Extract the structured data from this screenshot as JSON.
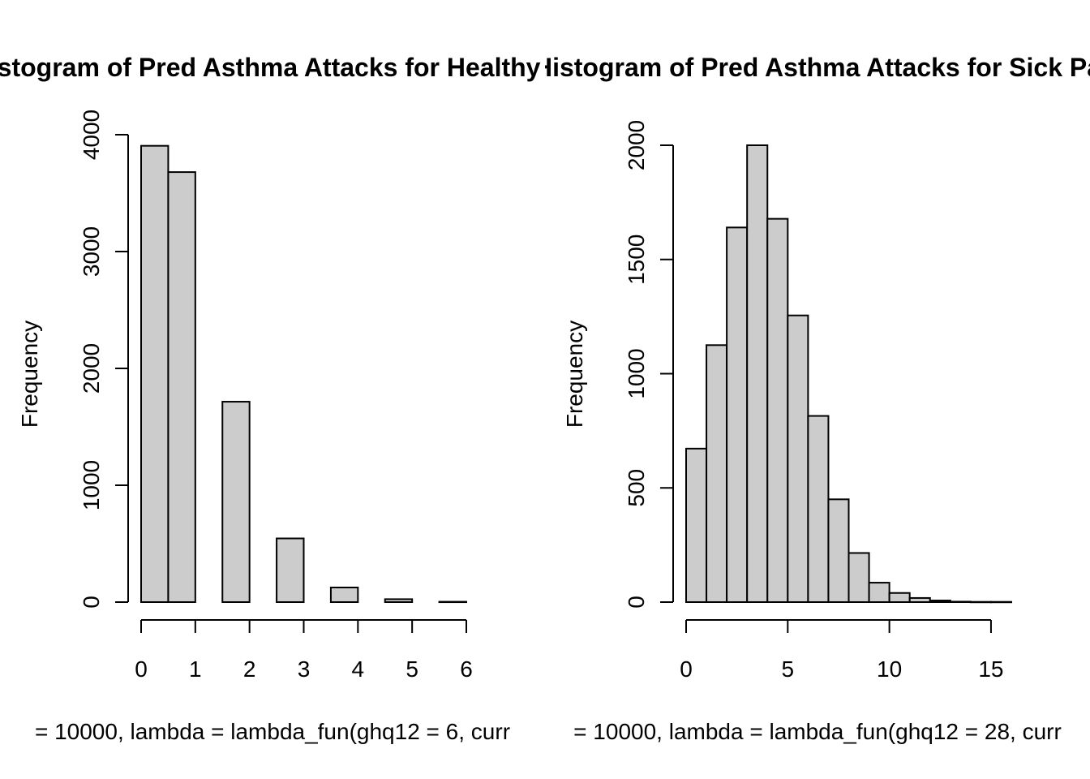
{
  "chart_data": [
    {
      "type": "bar",
      "title": "Histogram of Pred Asthma Attacks for Healthy Pt",
      "xlabel": "= 10000, lambda = lambda_fun(ghq12 = 6, curr",
      "ylabel": "Frequency",
      "xlim": [
        0,
        6
      ],
      "ylim": [
        0,
        4000
      ],
      "xticks": [
        0,
        1,
        2,
        3,
        4,
        5,
        6
      ],
      "yticks": [
        0,
        1000,
        2000,
        3000,
        4000
      ],
      "grid": false,
      "bins": [
        {
          "x0": 0.0,
          "x1": 0.5,
          "count": 3905
        },
        {
          "x0": 0.5,
          "x1": 1.0,
          "count": 3680
        },
        {
          "x0": 1.0,
          "x1": 1.5,
          "count": 0
        },
        {
          "x0": 1.5,
          "x1": 2.0,
          "count": 1715
        },
        {
          "x0": 2.0,
          "x1": 2.5,
          "count": 0
        },
        {
          "x0": 2.5,
          "x1": 3.0,
          "count": 545
        },
        {
          "x0": 3.0,
          "x1": 3.5,
          "count": 0
        },
        {
          "x0": 3.5,
          "x1": 4.0,
          "count": 125
        },
        {
          "x0": 4.0,
          "x1": 4.5,
          "count": 0
        },
        {
          "x0": 4.5,
          "x1": 5.0,
          "count": 25
        },
        {
          "x0": 5.0,
          "x1": 5.5,
          "count": 0
        },
        {
          "x0": 5.5,
          "x1": 6.0,
          "count": 3
        }
      ]
    },
    {
      "type": "bar",
      "title": "Histogram of Pred Asthma Attacks for Sick Pa",
      "xlabel": "= 10000, lambda = lambda_fun(ghq12 = 28, curr",
      "ylabel": "Frequency",
      "xlim": [
        0,
        16
      ],
      "ylim": [
        0,
        2000
      ],
      "xticks": [
        0,
        5,
        10,
        15
      ],
      "yticks": [
        0,
        500,
        1000,
        1500,
        2000
      ],
      "grid": false,
      "bins": [
        {
          "x0": 0,
          "x1": 1,
          "count": 672
        },
        {
          "x0": 1,
          "x1": 2,
          "count": 1125
        },
        {
          "x0": 2,
          "x1": 3,
          "count": 1640
        },
        {
          "x0": 3,
          "x1": 4,
          "count": 2000
        },
        {
          "x0": 4,
          "x1": 5,
          "count": 1678
        },
        {
          "x0": 5,
          "x1": 6,
          "count": 1255
        },
        {
          "x0": 6,
          "x1": 7,
          "count": 815
        },
        {
          "x0": 7,
          "x1": 8,
          "count": 450
        },
        {
          "x0": 8,
          "x1": 9,
          "count": 215
        },
        {
          "x0": 9,
          "x1": 10,
          "count": 85
        },
        {
          "x0": 10,
          "x1": 11,
          "count": 40
        },
        {
          "x0": 11,
          "x1": 12,
          "count": 18
        },
        {
          "x0": 12,
          "x1": 13,
          "count": 7
        },
        {
          "x0": 13,
          "x1": 14,
          "count": 2
        },
        {
          "x0": 14,
          "x1": 15,
          "count": 1
        },
        {
          "x0": 15,
          "x1": 16,
          "count": 1
        }
      ]
    }
  ]
}
